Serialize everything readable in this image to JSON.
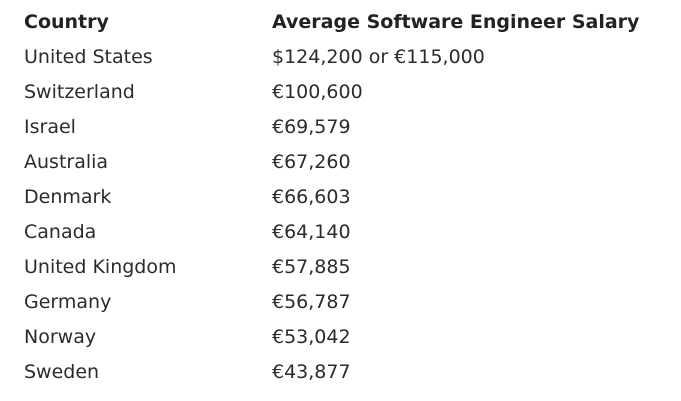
{
  "table": {
    "headers": [
      "Country",
      "Average Software Engineer Salary"
    ],
    "rows": [
      {
        "country": "United States",
        "salary": "$124,200 or €115,000"
      },
      {
        "country": "Switzerland",
        "salary": "€100,600"
      },
      {
        "country": "Israel",
        "salary": "€69,579"
      },
      {
        "country": "Australia",
        "salary": "€67,260"
      },
      {
        "country": "Denmark",
        "salary": "€66,603"
      },
      {
        "country": "Canada",
        "salary": "€64,140"
      },
      {
        "country": "United Kingdom",
        "salary": "€57,885"
      },
      {
        "country": "Germany",
        "salary": "€56,787"
      },
      {
        "country": "Norway",
        "salary": "€53,042"
      },
      {
        "country": "Sweden",
        "salary": "€43,877"
      }
    ]
  }
}
